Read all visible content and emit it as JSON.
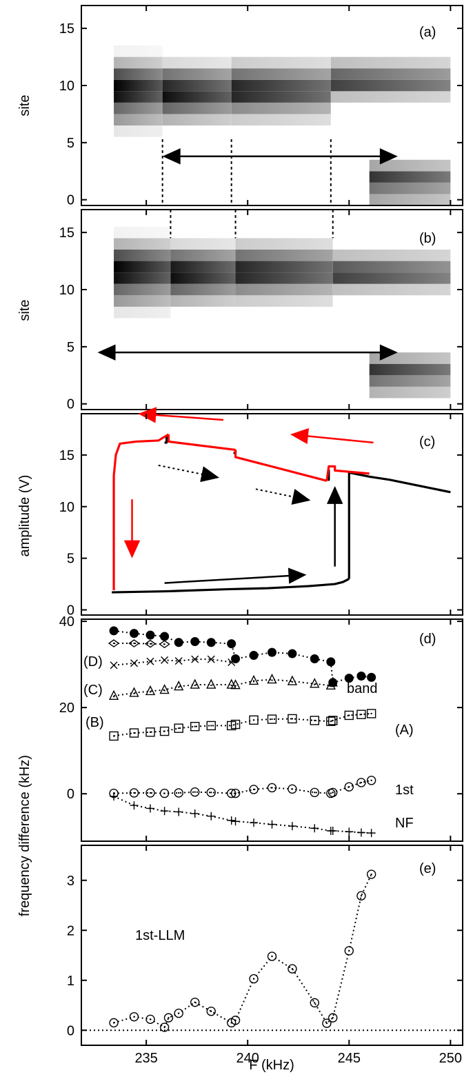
{
  "figure": {
    "x_axis": {
      "label": "F (kHz)",
      "ticks": [
        235,
        240,
        245,
        250
      ],
      "range": [
        231.8,
        250.6
      ]
    }
  },
  "chart_data": [
    {
      "id": "a",
      "type": "heatmap",
      "panel_label": "(a)",
      "ylabel": "site",
      "yticks": [
        0,
        5,
        10,
        15
      ],
      "ylim": [
        -0.5,
        17
      ],
      "colormap": "white-to-black (higher intensity = darker)",
      "blocks": [
        {
          "x": [
            233.4,
            235.8
          ],
          "rows": {
            "6": 0.1,
            "7": 0.4,
            "8": 0.6,
            "9": 0.95,
            "10": 1.0,
            "11": 0.7,
            "12": 0.3,
            "13": 0.05
          }
        },
        {
          "x": [
            235.8,
            239.2
          ],
          "rows": {
            "7": 0.3,
            "8": 0.6,
            "9": 0.95,
            "10": 0.85,
            "11": 0.55,
            "12": 0.15
          }
        },
        {
          "x": [
            239.2,
            244.1
          ],
          "rows": {
            "7": 0.2,
            "8": 0.45,
            "9": 0.85,
            "10": 0.85,
            "11": 0.55,
            "12": 0.2
          }
        },
        {
          "x": [
            244.1,
            250.0
          ],
          "rows": {
            "9": 0.25,
            "10": 0.75,
            "11": 0.6,
            "12": 0.25
          }
        },
        {
          "x": [
            246.0,
            250.0
          ],
          "rows": {
            "0": 0.35,
            "1": 0.55,
            "2": 0.8,
            "3": 0.35
          }
        }
      ],
      "arrow": {
        "from": 235.8,
        "to": 247.4,
        "site": 3.8
      }
    },
    {
      "id": "b",
      "type": "heatmap",
      "panel_label": "(b)",
      "ylabel": "site",
      "yticks": [
        0,
        5,
        10,
        15
      ],
      "ylim": [
        -0.5,
        17
      ],
      "colormap": "white-to-black (higher intensity = darker)",
      "blocks": [
        {
          "x": [
            233.4,
            236.2
          ],
          "rows": {
            "8": 0.1,
            "9": 0.4,
            "10": 0.6,
            "11": 0.95,
            "12": 1.0,
            "13": 0.7,
            "14": 0.3,
            "15": 0.05
          }
        },
        {
          "x": [
            236.2,
            239.4
          ],
          "rows": {
            "9": 0.3,
            "10": 0.6,
            "11": 0.95,
            "12": 0.9,
            "13": 0.55,
            "14": 0.15
          }
        },
        {
          "x": [
            239.4,
            244.2
          ],
          "rows": {
            "9": 0.2,
            "10": 0.45,
            "11": 0.85,
            "12": 0.85,
            "13": 0.55,
            "14": 0.2
          }
        },
        {
          "x": [
            244.2,
            250.0
          ],
          "rows": {
            "10": 0.25,
            "11": 0.75,
            "12": 0.65,
            "13": 0.25
          }
        },
        {
          "x": [
            246.0,
            250.0
          ],
          "rows": {
            "1": 0.3,
            "2": 0.55,
            "3": 0.8,
            "4": 0.35
          }
        }
      ],
      "arrow": {
        "from": 232.6,
        "to": 247.4,
        "site": 4.5
      }
    },
    {
      "id": "c",
      "type": "line",
      "panel_label": "(c)",
      "ylabel": "amplitude (V)",
      "yticks": [
        0,
        5,
        10,
        15
      ],
      "ylim": [
        -0.5,
        19
      ],
      "series": [
        {
          "color": "#000000",
          "segments": [
            {
              "x": [
                233.3,
                236,
                239,
                241,
                243,
                244.3,
                244.7,
                244.9,
                245.0
              ],
              "y": [
                1.7,
                1.8,
                2.0,
                2.1,
                2.3,
                2.5,
                2.7,
                2.9,
                3.0
              ]
            },
            {
              "x": [
                245.0,
                245.0
              ],
              "y": [
                3.0,
                13.3
              ]
            },
            {
              "x": [
                245.0,
                246,
                247,
                248,
                249,
                250
              ],
              "y": [
                13.3,
                12.9,
                12.6,
                12.2,
                11.8,
                11.4
              ]
            },
            {
              "x": [
                236.0,
                236.0,
                235.9
              ],
              "y": [
                16.9,
                16.2,
                16.2
              ]
            },
            {
              "x": [
                239.4,
                239.4,
                239.3
              ],
              "y": [
                15.5,
                15.2,
                15.2
              ]
            },
            {
              "x": [
                244.0,
                244.0,
                243.9
              ],
              "y": [
                13.6,
                12.6,
                12.6
              ]
            }
          ]
        },
        {
          "color": "#ff0000",
          "segments": [
            {
              "x": [
                246.0,
                244.3,
                244.3,
                244.0,
                243.9
              ],
              "y": [
                13.2,
                13.5,
                13.9,
                13.9,
                12.5
              ]
            },
            {
              "x": [
                243.9,
                239.4,
                239.4
              ],
              "y": [
                12.5,
                14.8,
                15.5
              ]
            },
            {
              "x": [
                239.4,
                236.1,
                236.1
              ],
              "y": [
                15.5,
                16.3,
                17.0
              ]
            },
            {
              "x": [
                236.1,
                235.6,
                234.5,
                233.7,
                233.5,
                233.4
              ],
              "y": [
                17.0,
                16.4,
                16.3,
                16.1,
                15.0,
                13.0
              ]
            },
            {
              "x": [
                233.4,
                233.4
              ],
              "y": [
                13.0,
                1.9
              ]
            }
          ]
        }
      ],
      "annotations": [
        {
          "shape": "arrow",
          "color": "#ff0000",
          "from": [
            238.8,
            18.4
          ],
          "to": [
            234.6,
            19.0
          ]
        },
        {
          "shape": "arrow",
          "color": "#ff0000",
          "from": [
            246.2,
            16.2
          ],
          "to": [
            242.1,
            17.0
          ]
        },
        {
          "shape": "arrow",
          "color": "#ff0000",
          "from": [
            234.3,
            10.7
          ],
          "to": [
            234.3,
            5.0
          ]
        },
        {
          "shape": "arrow",
          "color": "#000000",
          "from": [
            235.9,
            2.6
          ],
          "to": [
            242.9,
            3.4
          ]
        },
        {
          "shape": "arrow",
          "color": "#000000",
          "from": [
            244.3,
            4.2
          ],
          "to": [
            244.3,
            12.0
          ]
        },
        {
          "shape": "dotted-arrow",
          "color": "#000000",
          "from": [
            235.6,
            14.0
          ],
          "to": [
            238.6,
            12.8
          ]
        },
        {
          "shape": "dotted-arrow",
          "color": "#000000",
          "from": [
            240.4,
            11.7
          ],
          "to": [
            243.1,
            10.6
          ]
        }
      ]
    },
    {
      "id": "d",
      "type": "scatter",
      "panel_label": "(d)",
      "ylabel": "frequency difference (kHz)",
      "yticks": [
        0,
        20,
        40
      ],
      "ylim": [
        -11,
        40.5
      ],
      "series": [
        {
          "label": "band",
          "marker": "filled-circle",
          "x": [
            233.4,
            234.4,
            235.2,
            235.9,
            236.6,
            237.4,
            238.2,
            239.2,
            239.4,
            240.3,
            241.2,
            242.2,
            243.3,
            244.1,
            244.2,
            245.0,
            245.6,
            246.1
          ],
          "y": [
            37.8,
            37.2,
            36.8,
            36.5,
            35.1,
            35.3,
            35.1,
            34.8,
            31.3,
            32.1,
            32.8,
            32.5,
            31.3,
            30.6,
            25.8,
            26.8,
            27.3,
            27.0
          ]
        },
        {
          "label": "(D)",
          "marker": "diamond-dot",
          "x": [
            233.4,
            234.4,
            235.2,
            235.9
          ],
          "y": [
            34.9,
            34.9,
            34.8,
            34.7
          ]
        },
        {
          "label": "(C)",
          "marker": "x",
          "x": [
            233.4,
            234.4,
            235.2,
            235.9,
            236.6,
            237.4,
            238.2,
            239.2
          ],
          "y": [
            29.8,
            30.3,
            30.7,
            31.0,
            30.8,
            31.2,
            31.2,
            30.5
          ]
        },
        {
          "label": "(B)",
          "marker": "triangle-dot",
          "x": [
            233.4,
            234.4,
            235.2,
            235.9,
            236.6,
            237.4,
            238.2,
            239.2,
            239.4,
            240.3,
            241.2,
            242.2,
            243.3,
            244.1,
            244.2
          ],
          "y": [
            22.7,
            23.4,
            23.8,
            24.1,
            24.9,
            25.3,
            25.3,
            25.3,
            25.2,
            26.2,
            26.5,
            26.1,
            25.5,
            25.1,
            25.8
          ]
        },
        {
          "label": "(A)",
          "marker": "square-dot",
          "x": [
            233.4,
            234.4,
            235.2,
            235.9,
            236.6,
            237.4,
            238.2,
            239.2,
            239.4,
            240.3,
            241.2,
            242.2,
            243.3,
            244.1,
            244.2,
            245.0,
            245.6,
            246.1
          ],
          "y": [
            13.4,
            14.1,
            14.3,
            14.5,
            15.2,
            15.6,
            15.8,
            15.8,
            16.1,
            17.1,
            17.3,
            17.4,
            17.0,
            16.8,
            17.0,
            18.2,
            18.4,
            18.6
          ]
        },
        {
          "label": "1st",
          "marker": "circle-dot",
          "x": [
            233.4,
            234.4,
            235.2,
            235.9,
            236.6,
            237.4,
            238.2,
            239.2,
            239.4,
            240.3,
            241.2,
            242.2,
            243.3,
            244.1,
            244.2,
            245.0,
            245.6,
            246.1
          ],
          "y": [
            0.1,
            0.2,
            0.2,
            0.1,
            0.2,
            0.4,
            0.3,
            0.1,
            0.1,
            1.0,
            1.4,
            1.1,
            0.3,
            0.1,
            0.3,
            1.6,
            2.6,
            3.1
          ]
        },
        {
          "label": "NF",
          "marker": "plus",
          "x": [
            233.4,
            234.4,
            235.2,
            235.9,
            236.6,
            237.4,
            238.2,
            239.2,
            239.4,
            240.3,
            241.2,
            242.2,
            243.3,
            244.1,
            244.2,
            245.0,
            245.6,
            246.1
          ],
          "y": [
            -0.6,
            -2.7,
            -3.4,
            -4.0,
            -4.2,
            -4.6,
            -5.2,
            -6.2,
            -6.4,
            -6.7,
            -7.1,
            -7.5,
            -8.0,
            -8.6,
            -8.6,
            -8.8,
            -9.0,
            -9.1
          ]
        }
      ]
    },
    {
      "id": "e",
      "type": "scatter",
      "panel_label": "(e)",
      "annotation": "1st-LLM",
      "yticks": [
        0,
        1,
        2,
        3
      ],
      "ylim": [
        -0.3,
        3.7
      ],
      "reference_line": 0,
      "series": [
        {
          "marker": "circle-dot",
          "x": [
            233.4,
            234.4,
            235.2,
            235.9,
            236.1,
            236.6,
            237.4,
            238.2,
            239.2,
            239.4,
            240.3,
            241.2,
            242.2,
            243.3,
            243.9,
            244.2,
            245.0,
            245.6,
            246.1
          ],
          "y": [
            0.15,
            0.27,
            0.22,
            0.06,
            0.25,
            0.34,
            0.56,
            0.38,
            0.15,
            0.2,
            1.03,
            1.48,
            1.23,
            0.55,
            0.14,
            0.25,
            1.59,
            2.69,
            3.12
          ]
        }
      ]
    }
  ],
  "labels": {
    "d_series_left": [
      "(D)",
      "(C)",
      "(B)"
    ],
    "d_series_right": [
      "band",
      "(A)",
      "1st",
      "NF"
    ]
  }
}
